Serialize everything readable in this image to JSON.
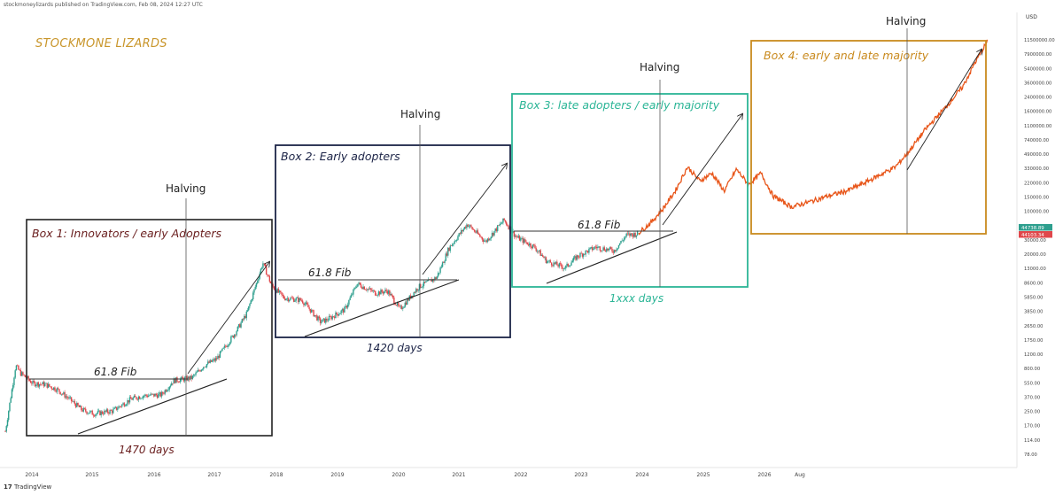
{
  "header": {
    "published": "stockmoneylizards published on TradingView.com, Feb 08, 2024 12:27 UTC",
    "brand": "STOCKMONE LIZARDS",
    "currency": "USD",
    "footer": "TradingView"
  },
  "colors": {
    "box1": "#222222",
    "box1_text": "#6b2020",
    "box2": "#1c2447",
    "box2_text": "#1c2447",
    "box3": "#2bb596",
    "box3_text": "#2bb596",
    "box4": "#c98a1e",
    "box4_text": "#c98a1e",
    "candle_up": "#2e9f8e",
    "candle_down": "#e0474b",
    "projection": "#e8561a",
    "brand": "#c9962b"
  },
  "chart_data": {
    "type": "line",
    "title": "",
    "xlabel": "",
    "ylabel": "",
    "y_scale": "log",
    "x_ticks": [
      "2014",
      "2015",
      "2016",
      "2017",
      "2018",
      "2019",
      "2020",
      "2021",
      "2022",
      "2023",
      "2024",
      "2025",
      "2026",
      "Aug"
    ],
    "y_ticks": [
      "11500000.00",
      "7900000.00",
      "5400000.00",
      "3600000.00",
      "2400000.00",
      "1600000.00",
      "1100000.00",
      "740000.00",
      "490000.00",
      "330000.00",
      "220000.00",
      "150000.00",
      "100000.00",
      "68000.00",
      "30000.00",
      "20000.00",
      "13000.00",
      "8600.00",
      "5850.00",
      "3850.00",
      "2650.00",
      "1750.00",
      "1200.00",
      "800.00",
      "550.00",
      "370.00",
      "250.00",
      "170.00",
      "114.00",
      "78.00"
    ],
    "price_tags": [
      {
        "label": "44738.89",
        "color": "#2e9f8e"
      },
      {
        "label": "44103.34",
        "color": "#e0474b"
      }
    ],
    "series": [
      {
        "type": "candles",
        "x": [
          2013.75,
          2013.92,
          2014.0,
          2014.2,
          2014.4,
          2014.6,
          2014.8,
          2015.0,
          2015.2,
          2015.5,
          2015.8,
          2016.0,
          2016.3,
          2016.5,
          2016.8,
          2017.0,
          2017.2,
          2017.5,
          2017.7,
          2017.96,
          2018.1,
          2018.3,
          2018.6,
          2018.9,
          2019.0,
          2019.3,
          2019.5,
          2019.8,
          2020.0,
          2020.2,
          2020.5,
          2020.8,
          2021.0,
          2021.3,
          2021.6,
          2021.9,
          2022.1,
          2022.4,
          2022.6,
          2022.9,
          2023.1,
          2023.4,
          2023.7,
          2023.9,
          2024.1
        ],
        "values": [
          150,
          1000,
          800,
          600,
          580,
          500,
          380,
          280,
          250,
          270,
          380,
          420,
          430,
          650,
          700,
          1000,
          1200,
          2500,
          4500,
          19000,
          10000,
          7000,
          6500,
          3500,
          3700,
          5000,
          10500,
          8000,
          8500,
          5000,
          9500,
          12500,
          29000,
          58000,
          35000,
          65000,
          40000,
          30000,
          20000,
          16500,
          23000,
          30000,
          27000,
          42000,
          44000
        ]
      },
      {
        "type": "projection",
        "x": [
          2024.1,
          2024.3,
          2024.5,
          2024.7,
          2024.9,
          2025.1,
          2025.3,
          2025.5,
          2025.7,
          2025.9,
          2026.1,
          2026.3,
          2026.6,
          2026.9,
          2027.2,
          2027.5,
          2027.8,
          2028.1,
          2028.3,
          2028.5,
          2028.8,
          2029.1,
          2029.4,
          2029.6,
          2029.8
        ],
        "values": [
          45000,
          60000,
          90000,
          150000,
          300000,
          200000,
          250000,
          150000,
          280000,
          180000,
          250000,
          130000,
          95000,
          110000,
          130000,
          150000,
          190000,
          250000,
          300000,
          450000,
          900000,
          1600000,
          3000000,
          6000000,
          11000000
        ]
      }
    ],
    "boxes": [
      {
        "label": "Box 1: Innovators / early Adopters",
        "fib": "61.8 Fib",
        "days": "1470 days",
        "halving": "Halving"
      },
      {
        "label": "Box 2: Early adopters",
        "fib": "61.8 Fib",
        "days": "1420 days",
        "halving": "Halving"
      },
      {
        "label": "Box 3: late adopters / early majority",
        "fib": "61.8 Fib",
        "days": "1xxx days",
        "halving": "Halving"
      },
      {
        "label": "Box 4: early and late majority",
        "halving": "Halving"
      }
    ]
  }
}
